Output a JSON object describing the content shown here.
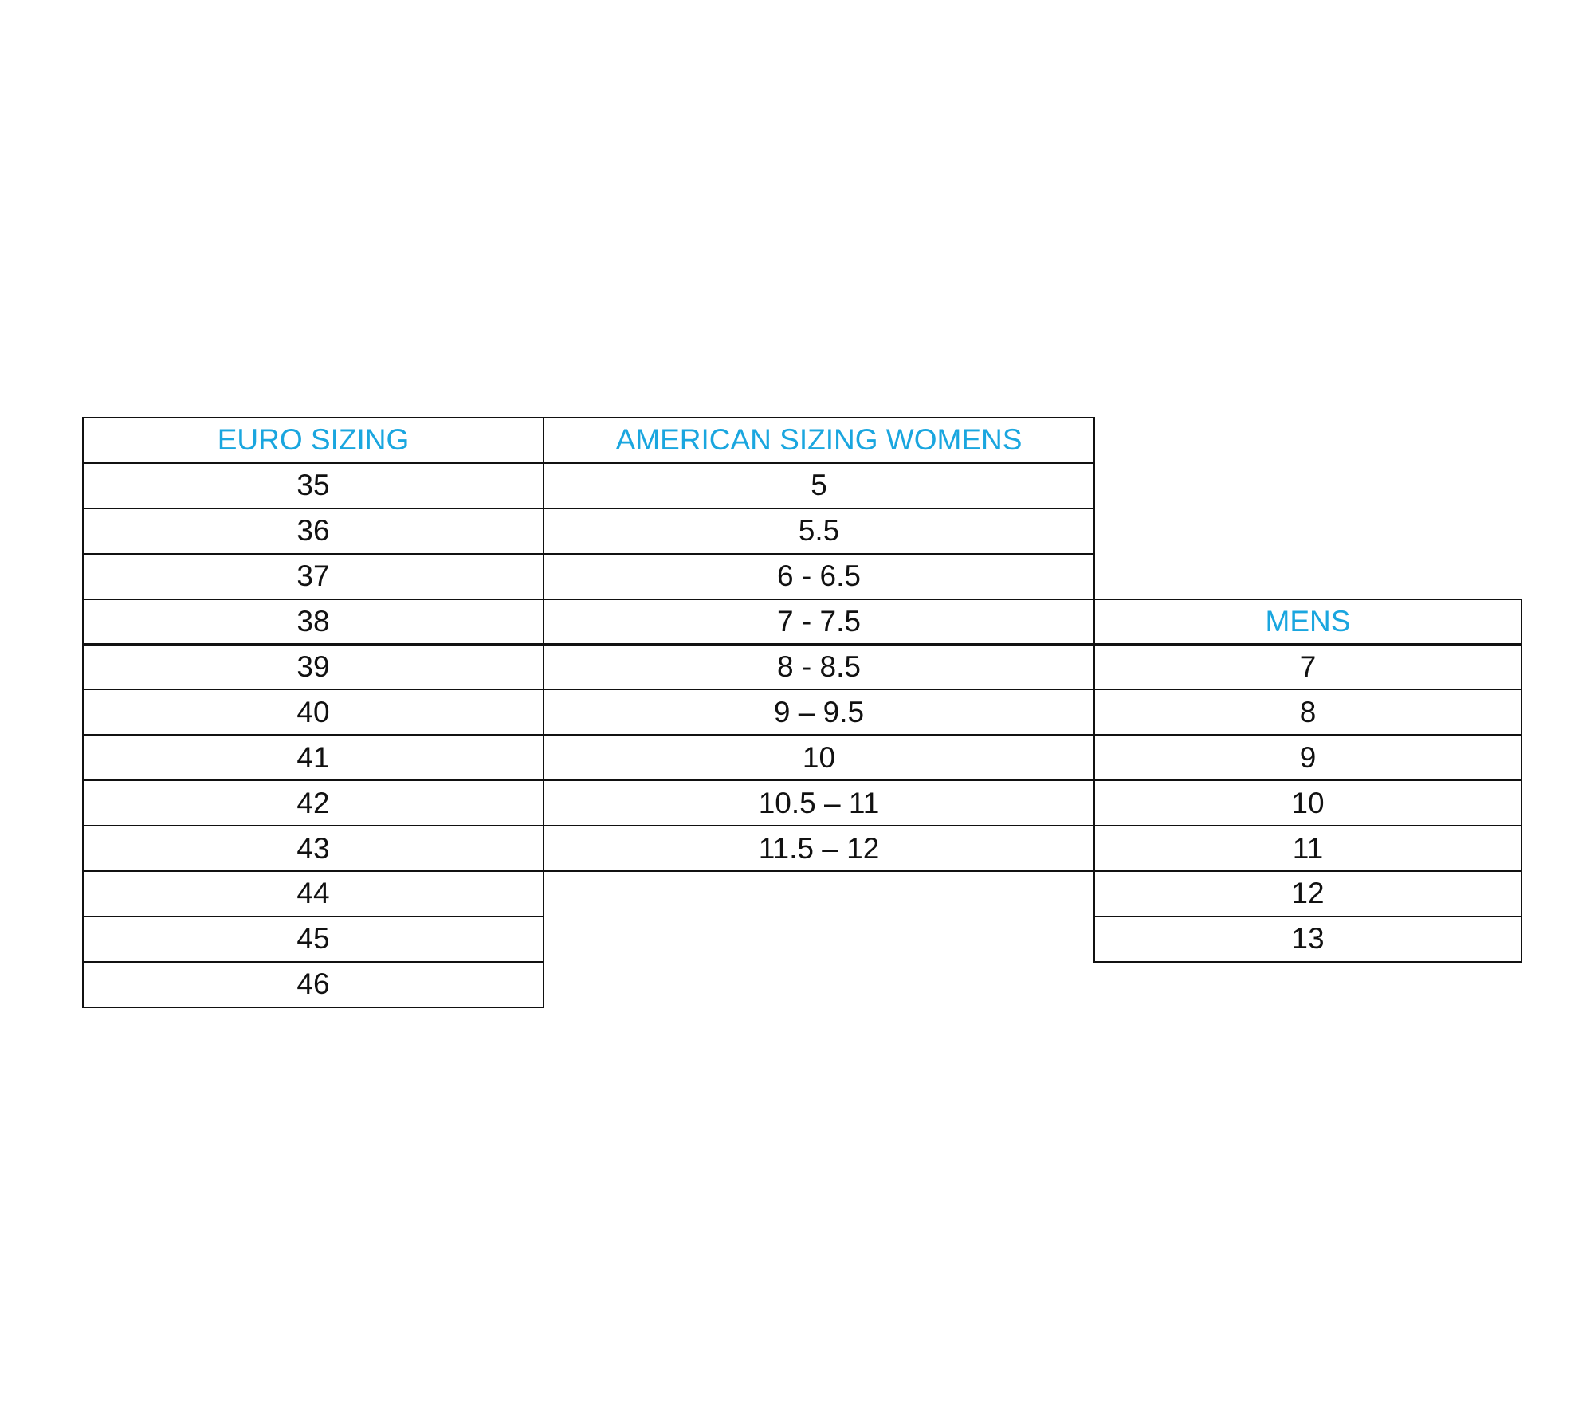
{
  "accent_color": "#1aa6df",
  "table": {
    "columns": [
      {
        "header": "EURO SIZING",
        "start_row": 0,
        "values": [
          "35",
          "36",
          "37",
          "38",
          "39",
          "40",
          "41",
          "42",
          "43",
          "44",
          "45",
          "46"
        ]
      },
      {
        "header": "AMERICAN SIZING WOMENS",
        "start_row": 0,
        "values": [
          "5",
          "5.5",
          "6 - 6.5",
          "7 - 7.5",
          "8 - 8.5",
          "9 – 9.5",
          "10",
          "10.5 – 11",
          "11.5 – 12"
        ]
      },
      {
        "header": "MENS",
        "start_row": 4,
        "values": [
          "7",
          "8",
          "9",
          "10",
          "11",
          "12",
          "13"
        ]
      }
    ]
  }
}
